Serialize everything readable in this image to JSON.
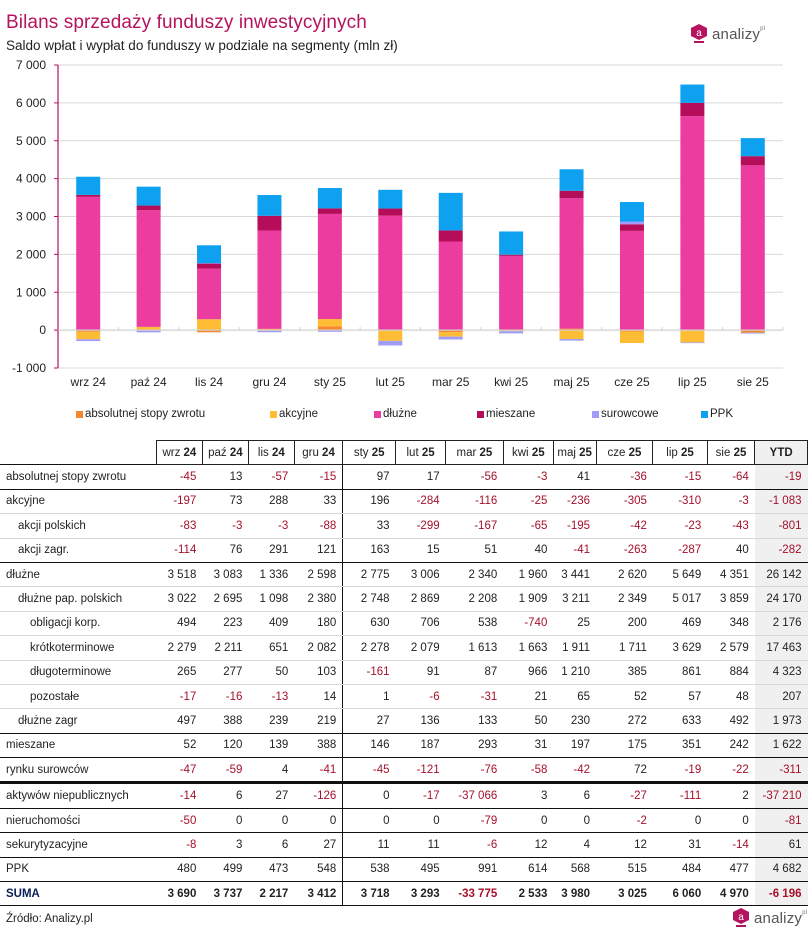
{
  "header": {
    "title": "Bilans sprzedaży funduszy inwestycyjnych",
    "subtitle": "Saldo wpłat i wypłat do funduszy w podziale na segmenty (mln zł)",
    "logo_text": "analizy",
    "logo_mark": "a",
    "logo_reg": "pl"
  },
  "colors": {
    "brand": "#b5135f",
    "negative_text": "#a5102a",
    "grid": "#d9d9d9",
    "axis": "#b5135f"
  },
  "chart_data": {
    "type": "bar",
    "stacked": true,
    "title": "Bilans sprzedaży funduszy inwestycyjnych",
    "subtitle": "Saldo wpłat i wypłat do funduszy w podziale na segmenty (mln zł)",
    "xlabel": "",
    "ylabel": "",
    "ylim": [
      -1000,
      7000
    ],
    "yticks": [
      -1000,
      0,
      1000,
      2000,
      3000,
      4000,
      5000,
      6000,
      7000
    ],
    "ytick_labels": [
      "-1 000",
      "0",
      "1 000",
      "2 000",
      "3 000",
      "4 000",
      "5 000",
      "6 000",
      "7 000"
    ],
    "grid": true,
    "legend_position": "bottom",
    "categories": [
      "wrz 24",
      "paź 24",
      "lis 24",
      "gru 24",
      "sty 25",
      "lut 25",
      "mar 25",
      "kwi 25",
      "maj 25",
      "cze 25",
      "lip 25",
      "sie 25"
    ],
    "series": [
      {
        "name": "absolutnej stopy zwrotu",
        "color": "#f7882f",
        "values": [
          -45,
          13,
          -57,
          -15,
          97,
          17,
          -56,
          -3,
          41,
          -36,
          -15,
          -64
        ]
      },
      {
        "name": "akcyjne",
        "color": "#ffbd35",
        "values": [
          -197,
          73,
          288,
          33,
          196,
          -284,
          -116,
          -25,
          -236,
          -305,
          -310,
          -3
        ]
      },
      {
        "name": "dłużne",
        "color": "#ed3c9f",
        "values": [
          3518,
          3083,
          1336,
          2598,
          2775,
          3006,
          2340,
          1960,
          3441,
          2620,
          5649,
          4351
        ]
      },
      {
        "name": "mieszane",
        "color": "#b50d5a",
        "values": [
          52,
          120,
          139,
          388,
          146,
          187,
          293,
          31,
          197,
          175,
          351,
          242
        ]
      },
      {
        "name": "surowcowe",
        "color": "#a09cf7",
        "values": [
          -47,
          -59,
          4,
          -41,
          -45,
          -121,
          -76,
          -58,
          -42,
          72,
          -19,
          -22
        ]
      },
      {
        "name": "PPK",
        "color": "#0ea1ef",
        "values": [
          480,
          499,
          473,
          548,
          538,
          495,
          991,
          614,
          568,
          515,
          484,
          477
        ]
      }
    ]
  },
  "table": {
    "columns": [
      "wrz 24",
      "paź 24",
      "lis 24",
      "gru 24",
      "sty 25",
      "lut 25",
      "mar 25",
      "kwi 25",
      "maj 25",
      "cze 25",
      "lip 25",
      "sie 25",
      "YTD"
    ],
    "rows": [
      {
        "label": "absolutnej stopy zwrotu",
        "indent": 0,
        "style": "thick",
        "values": [
          "-45",
          "13",
          "-57",
          "-15",
          "97",
          "17",
          "-56",
          "-3",
          "41",
          "-36",
          "-15",
          "-64",
          "-19"
        ]
      },
      {
        "label": "akcyjne",
        "indent": 0,
        "style": "row",
        "values": [
          "-197",
          "73",
          "288",
          "33",
          "196",
          "-284",
          "-116",
          "-25",
          "-236",
          "-305",
          "-310",
          "-3",
          "-1 083"
        ]
      },
      {
        "label": "akcji polskich",
        "indent": 1,
        "style": "row",
        "values": [
          "-83",
          "-3",
          "-3",
          "-88",
          "33",
          "-299",
          "-167",
          "-65",
          "-195",
          "-42",
          "-23",
          "-43",
          "-801"
        ]
      },
      {
        "label": "akcji zagr.",
        "indent": 1,
        "style": "thick",
        "values": [
          "-114",
          "76",
          "291",
          "121",
          "163",
          "15",
          "51",
          "40",
          "-41",
          "-263",
          "-287",
          "40",
          "-282"
        ]
      },
      {
        "label": "dłużne",
        "indent": 0,
        "style": "row",
        "values": [
          "3 518",
          "3 083",
          "1 336",
          "2 598",
          "2 775",
          "3 006",
          "2 340",
          "1 960",
          "3 441",
          "2 620",
          "5 649",
          "4 351",
          "26 142"
        ]
      },
      {
        "label": "dłużne pap. polskich",
        "indent": 1,
        "style": "row",
        "values": [
          "3 022",
          "2 695",
          "1 098",
          "2 380",
          "2 748",
          "2 869",
          "2 208",
          "1 909",
          "3 211",
          "2 349",
          "5 017",
          "3 859",
          "24 170"
        ]
      },
      {
        "label": "obligacji korp.",
        "indent": 2,
        "style": "row",
        "values": [
          "494",
          "223",
          "409",
          "180",
          "630",
          "706",
          "538",
          "-740",
          "25",
          "200",
          "469",
          "348",
          "2 176"
        ]
      },
      {
        "label": "krótkoterminowe",
        "indent": 2,
        "style": "row",
        "values": [
          "2 279",
          "2 211",
          "651",
          "2 082",
          "2 278",
          "2 079",
          "1 613",
          "1 663",
          "1 911",
          "1 711",
          "3 629",
          "2 579",
          "17 463"
        ]
      },
      {
        "label": "długoterminowe",
        "indent": 2,
        "style": "row",
        "values": [
          "265",
          "277",
          "50",
          "103",
          "-161",
          "91",
          "87",
          "966",
          "1 210",
          "385",
          "861",
          "884",
          "4 323"
        ]
      },
      {
        "label": "pozostałe",
        "indent": 2,
        "style": "row",
        "values": [
          "-17",
          "-16",
          "-13",
          "14",
          "1",
          "-6",
          "-31",
          "21",
          "65",
          "52",
          "57",
          "48",
          "207"
        ]
      },
      {
        "label": "dłużne zagr",
        "indent": 1,
        "style": "thick",
        "values": [
          "497",
          "388",
          "239",
          "219",
          "27",
          "136",
          "133",
          "50",
          "230",
          "272",
          "633",
          "492",
          "1 973"
        ]
      },
      {
        "label": "mieszane",
        "indent": 0,
        "style": "thick",
        "values": [
          "52",
          "120",
          "139",
          "388",
          "146",
          "187",
          "293",
          "31",
          "197",
          "175",
          "351",
          "242",
          "1 622"
        ]
      },
      {
        "label": "rynku surowców",
        "indent": 0,
        "style": "xthick",
        "values": [
          "-47",
          "-59",
          "4",
          "-41",
          "-45",
          "-121",
          "-76",
          "-58",
          "-42",
          "72",
          "-19",
          "-22",
          "-311"
        ]
      },
      {
        "label": "aktywów niepublicznych",
        "indent": 0,
        "style": "thick",
        "values": [
          "-14",
          "6",
          "27",
          "-126",
          "0",
          "-17",
          "-37 066",
          "3",
          "6",
          "-27",
          "-111",
          "2",
          "-37 210"
        ]
      },
      {
        "label": "nieruchomości",
        "indent": 0,
        "style": "thick",
        "values": [
          "-50",
          "0",
          "0",
          "0",
          "0",
          "0",
          "-79",
          "0",
          "0",
          "-2",
          "0",
          "0",
          "-81"
        ]
      },
      {
        "label": "sekurytyzacyjne",
        "indent": 0,
        "style": "thick",
        "values": [
          "-8",
          "3",
          "6",
          "27",
          "11",
          "11",
          "-6",
          "12",
          "4",
          "12",
          "31",
          "-14",
          "61"
        ]
      },
      {
        "label": "PPK",
        "indent": 0,
        "style": "thick",
        "values": [
          "480",
          "499",
          "473",
          "548",
          "538",
          "495",
          "991",
          "614",
          "568",
          "515",
          "484",
          "477",
          "4 682"
        ]
      },
      {
        "label": "SUMA",
        "indent": 0,
        "style": "suma",
        "values": [
          "3 690",
          "3 737",
          "2 217",
          "3 412",
          "3 718",
          "3 293",
          "-33 775",
          "2 533",
          "3 980",
          "3 025",
          "6 060",
          "4 970",
          "-6 196"
        ]
      }
    ]
  },
  "footer": {
    "source": "Źródło: Analizy.pl"
  }
}
